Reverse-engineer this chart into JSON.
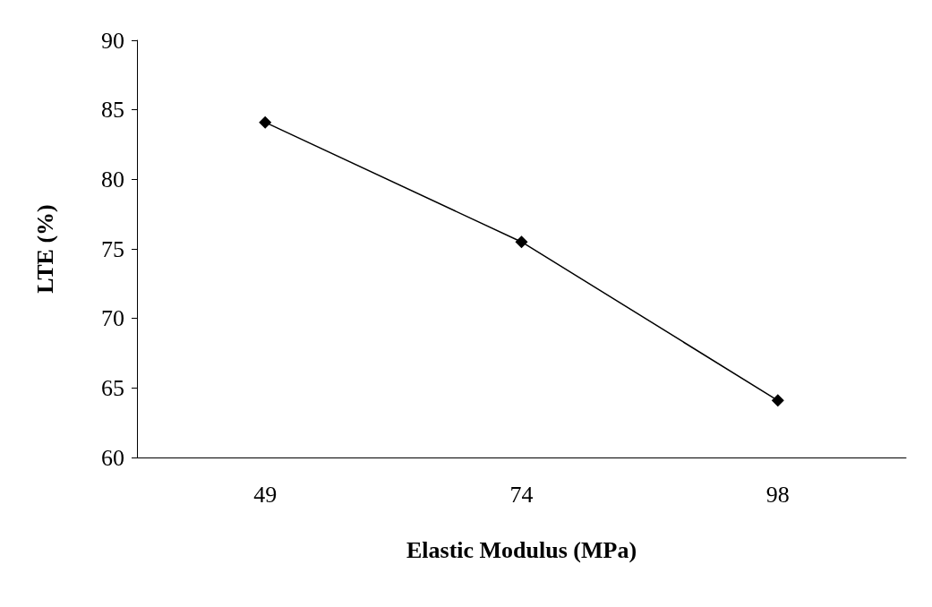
{
  "chart_data": {
    "type": "line",
    "xlabel": "Elastic Modulus (MPa)",
    "ylabel": "LTE (%)",
    "categories": [
      "49",
      "74",
      "98"
    ],
    "series": [
      {
        "color": "#000000",
        "values": [
          84.1,
          75.5,
          64.1
        ]
      }
    ],
    "ylim": [
      60,
      90
    ],
    "yticks": [
      60,
      65,
      70,
      75,
      80,
      85,
      90
    ],
    "marker": "diamond",
    "line_style": "solid",
    "grid": false
  }
}
